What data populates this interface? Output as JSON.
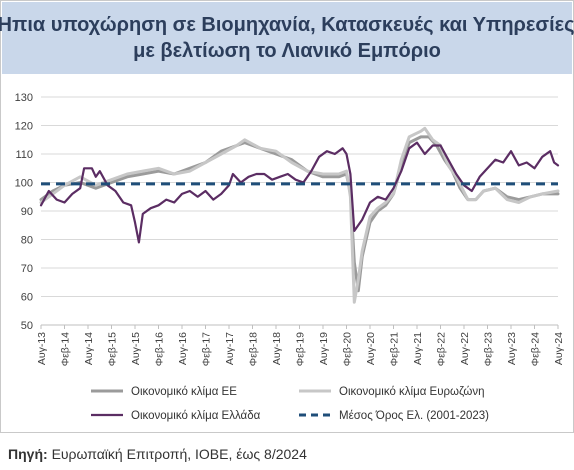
{
  "title_lines": [
    "Ήπια υποχώρηση σε Βιομηχανία, Κατασκευές και Υπηρεσίες,",
    "με βελτίωση το Λιανικό Εμπόριο"
  ],
  "source": {
    "label": "Πηγή:",
    "text": "Ευρωπαϊκή Επιτροπή, ΙΟΒΕ, έως 8/2024"
  },
  "chart_data": {
    "type": "line",
    "title": "Ήπια υποχώρηση σε Βιομηχανία, Κατασκευές και Υπηρεσίες, με βελτίωση το Λιανικό Εμπόριο",
    "ylim": [
      50,
      130
    ],
    "yticks": [
      50,
      60,
      70,
      80,
      90,
      100,
      110,
      120,
      130
    ],
    "xlim": [
      "2013-08",
      "2024-08"
    ],
    "xticks": [
      "Αυγ-13",
      "Φεβ-14",
      "Αυγ-14",
      "Φεβ-15",
      "Αυγ-15",
      "Φεβ-16",
      "Αυγ-16",
      "Φεβ-17",
      "Αυγ-17",
      "Φεβ-18",
      "Αυγ-18",
      "Φεβ-19",
      "Αυγ-19",
      "Φεβ-20",
      "Αυγ-20",
      "Φεβ-21",
      "Αυγ-21",
      "Φεβ-22",
      "Αυγ-22",
      "Φεβ-23",
      "Αυγ-23",
      "Φεβ-24",
      "Αυγ-24"
    ],
    "grid": "horizontal",
    "legend_position": "bottom",
    "series": [
      {
        "name": "Οικονομικό κλίμα ΕΕ",
        "color": "#9b9b9b",
        "width": 3,
        "dash": "",
        "points": [
          [
            "2013-08",
            94
          ],
          [
            "2013-11",
            97
          ],
          [
            "2014-02",
            99
          ],
          [
            "2014-06",
            100
          ],
          [
            "2014-10",
            98
          ],
          [
            "2015-02",
            100
          ],
          [
            "2015-06",
            102
          ],
          [
            "2015-10",
            103
          ],
          [
            "2016-02",
            104
          ],
          [
            "2016-06",
            103
          ],
          [
            "2016-10",
            105
          ],
          [
            "2017-02",
            107
          ],
          [
            "2017-06",
            111
          ],
          [
            "2017-10",
            113
          ],
          [
            "2017-12",
            114
          ],
          [
            "2018-04",
            112
          ],
          [
            "2018-08",
            110
          ],
          [
            "2018-12",
            108
          ],
          [
            "2019-04",
            104
          ],
          [
            "2019-08",
            102
          ],
          [
            "2019-12",
            102
          ],
          [
            "2020-02",
            103
          ],
          [
            "2020-03",
            96
          ],
          [
            "2020-04",
            72
          ],
          [
            "2020-05",
            62
          ],
          [
            "2020-06",
            74
          ],
          [
            "2020-08",
            86
          ],
          [
            "2020-10",
            90
          ],
          [
            "2020-12",
            92
          ],
          [
            "2021-02",
            96
          ],
          [
            "2021-04",
            106
          ],
          [
            "2021-06",
            114
          ],
          [
            "2021-09",
            116
          ],
          [
            "2021-11",
            116
          ],
          [
            "2022-01",
            113
          ],
          [
            "2022-03",
            108
          ],
          [
            "2022-05",
            104
          ],
          [
            "2022-07",
            98
          ],
          [
            "2022-09",
            94
          ],
          [
            "2022-11",
            94
          ],
          [
            "2023-01",
            97
          ],
          [
            "2023-04",
            98
          ],
          [
            "2023-07",
            95
          ],
          [
            "2023-10",
            94
          ],
          [
            "2024-01",
            95
          ],
          [
            "2024-04",
            96
          ],
          [
            "2024-08",
            96
          ]
        ]
      },
      {
        "name": "Οικονομικό κλίμα Ευρωζώνη",
        "color": "#c7c7c7",
        "width": 3,
        "dash": "",
        "points": [
          [
            "2013-08",
            93
          ],
          [
            "2013-11",
            96
          ],
          [
            "2014-02",
            99
          ],
          [
            "2014-06",
            102
          ],
          [
            "2014-10",
            99
          ],
          [
            "2015-02",
            101
          ],
          [
            "2015-06",
            103
          ],
          [
            "2015-10",
            104
          ],
          [
            "2016-02",
            105
          ],
          [
            "2016-06",
            103
          ],
          [
            "2016-10",
            104
          ],
          [
            "2017-02",
            107
          ],
          [
            "2017-06",
            110
          ],
          [
            "2017-10",
            113
          ],
          [
            "2017-12",
            115
          ],
          [
            "2018-04",
            112
          ],
          [
            "2018-08",
            111
          ],
          [
            "2018-12",
            107
          ],
          [
            "2019-04",
            104
          ],
          [
            "2019-08",
            103
          ],
          [
            "2019-12",
            103
          ],
          [
            "2020-02",
            104
          ],
          [
            "2020-03",
            95
          ],
          [
            "2020-04",
            58
          ],
          [
            "2020-05",
            66
          ],
          [
            "2020-06",
            76
          ],
          [
            "2020-08",
            88
          ],
          [
            "2020-10",
            91
          ],
          [
            "2020-12",
            93
          ],
          [
            "2021-02",
            96
          ],
          [
            "2021-04",
            108
          ],
          [
            "2021-06",
            116
          ],
          [
            "2021-09",
            118
          ],
          [
            "2021-10",
            119
          ],
          [
            "2021-12",
            115
          ],
          [
            "2022-02",
            113
          ],
          [
            "2022-04",
            106
          ],
          [
            "2022-06",
            102
          ],
          [
            "2022-09",
            94
          ],
          [
            "2022-11",
            94
          ],
          [
            "2023-01",
            97
          ],
          [
            "2023-04",
            98
          ],
          [
            "2023-07",
            94
          ],
          [
            "2023-10",
            93
          ],
          [
            "2024-01",
            95
          ],
          [
            "2024-04",
            96
          ],
          [
            "2024-08",
            97
          ]
        ]
      },
      {
        "name": "Οικονομικό κλίμα Ελλάδα",
        "color": "#5b2d63",
        "width": 2.2,
        "dash": "",
        "points": [
          [
            "2013-08",
            92
          ],
          [
            "2013-10",
            97
          ],
          [
            "2013-12",
            94
          ],
          [
            "2014-02",
            93
          ],
          [
            "2014-04",
            96
          ],
          [
            "2014-06",
            98
          ],
          [
            "2014-07",
            105
          ],
          [
            "2014-09",
            105
          ],
          [
            "2014-10",
            102
          ],
          [
            "2014-11",
            104
          ],
          [
            "2015-01",
            99
          ],
          [
            "2015-03",
            97
          ],
          [
            "2015-05",
            93
          ],
          [
            "2015-07",
            92
          ],
          [
            "2015-08",
            86
          ],
          [
            "2015-09",
            79
          ],
          [
            "2015-10",
            89
          ],
          [
            "2015-12",
            91
          ],
          [
            "2016-02",
            92
          ],
          [
            "2016-04",
            94
          ],
          [
            "2016-06",
            93
          ],
          [
            "2016-08",
            96
          ],
          [
            "2016-10",
            97
          ],
          [
            "2016-12",
            95
          ],
          [
            "2017-02",
            97
          ],
          [
            "2017-04",
            94
          ],
          [
            "2017-06",
            96
          ],
          [
            "2017-08",
            99
          ],
          [
            "2017-09",
            103
          ],
          [
            "2017-11",
            100
          ],
          [
            "2018-01",
            102
          ],
          [
            "2018-03",
            103
          ],
          [
            "2018-05",
            103
          ],
          [
            "2018-07",
            101
          ],
          [
            "2018-09",
            102
          ],
          [
            "2018-11",
            103
          ],
          [
            "2019-01",
            101
          ],
          [
            "2019-03",
            100
          ],
          [
            "2019-05",
            104
          ],
          [
            "2019-07",
            109
          ],
          [
            "2019-09",
            111
          ],
          [
            "2019-11",
            110
          ],
          [
            "2020-01",
            112
          ],
          [
            "2020-02",
            110
          ],
          [
            "2020-03",
            103
          ],
          [
            "2020-04",
            83
          ],
          [
            "2020-06",
            87
          ],
          [
            "2020-08",
            93
          ],
          [
            "2020-10",
            95
          ],
          [
            "2020-12",
            94
          ],
          [
            "2021-02",
            98
          ],
          [
            "2021-04",
            104
          ],
          [
            "2021-06",
            112
          ],
          [
            "2021-08",
            114
          ],
          [
            "2021-10",
            110
          ],
          [
            "2021-12",
            113
          ],
          [
            "2022-02",
            113
          ],
          [
            "2022-04",
            108
          ],
          [
            "2022-06",
            103
          ],
          [
            "2022-08",
            99
          ],
          [
            "2022-10",
            97
          ],
          [
            "2022-12",
            102
          ],
          [
            "2023-02",
            105
          ],
          [
            "2023-04",
            108
          ],
          [
            "2023-06",
            107
          ],
          [
            "2023-08",
            111
          ],
          [
            "2023-10",
            106
          ],
          [
            "2023-12",
            107
          ],
          [
            "2024-02",
            105
          ],
          [
            "2024-04",
            109
          ],
          [
            "2024-06",
            111
          ],
          [
            "2024-07",
            107
          ],
          [
            "2024-08",
            106
          ]
        ]
      },
      {
        "name": "Μέσος Όρος Ελ. (2001-2023)",
        "color": "#1f4e79",
        "width": 3,
        "dash": "9,6",
        "points": [
          [
            "2013-08",
            99.5
          ],
          [
            "2024-08",
            99.5
          ]
        ]
      }
    ],
    "legend_order": [
      0,
      1,
      2,
      3
    ]
  }
}
